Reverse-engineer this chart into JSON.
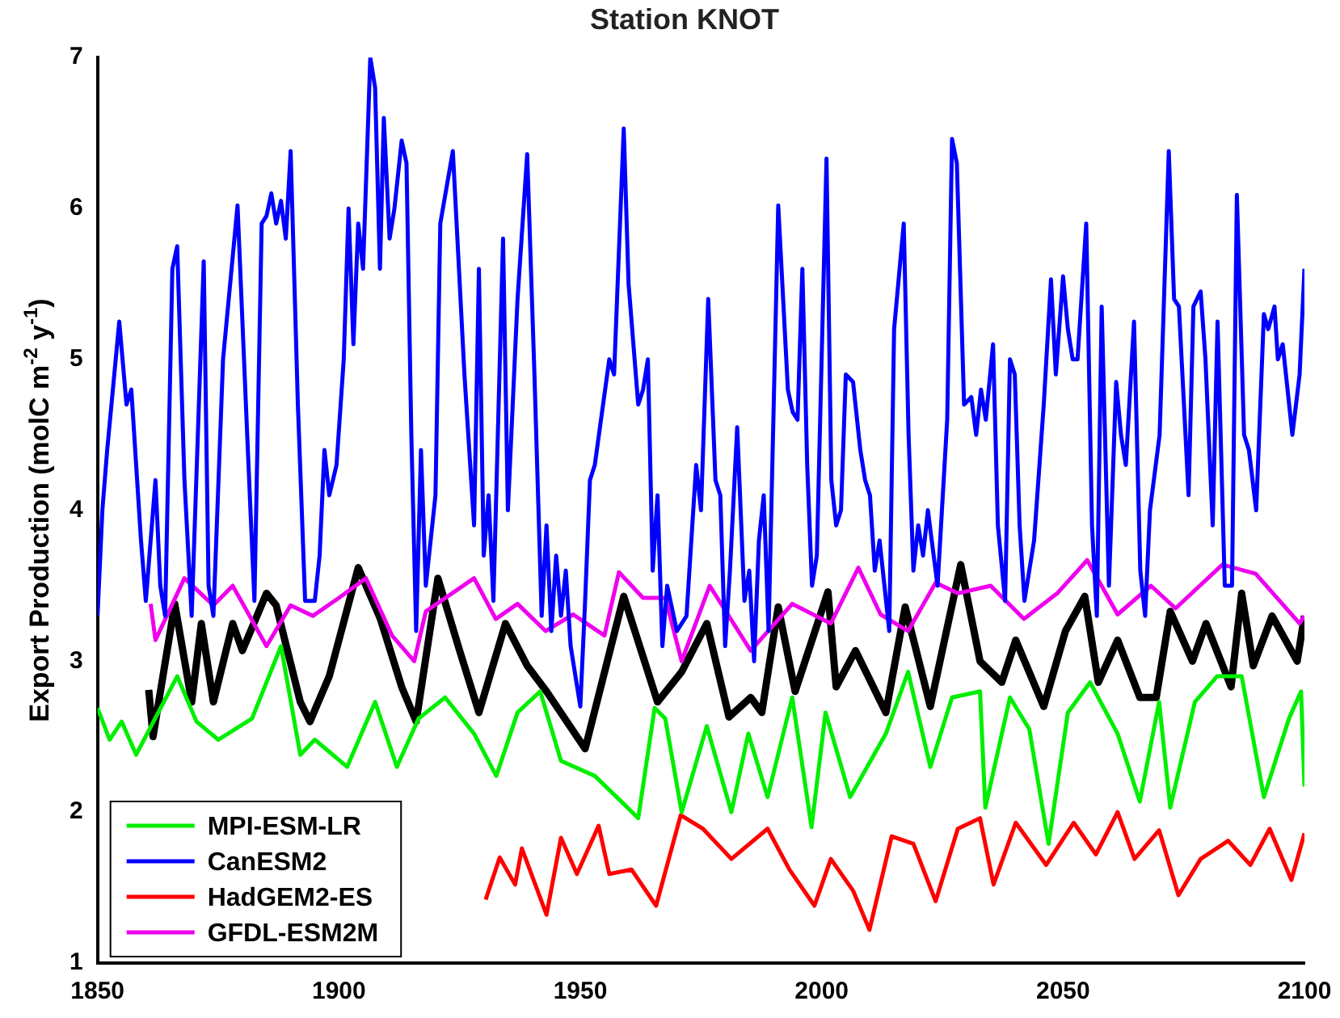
{
  "chart_data": {
    "type": "line",
    "title": "Station KNOT",
    "ylabel": "Export Production (molC m$^{-2}$ y$^{-1}$)",
    "xlim": [
      1850,
      2100
    ],
    "xticks": [
      1850,
      1900,
      1950,
      2000,
      2050,
      2100
    ],
    "ylim": [
      1,
      7
    ],
    "yticks": [
      1,
      2,
      3,
      4,
      5,
      6,
      7
    ],
    "grid": false,
    "legend": "bottom left",
    "marker": "none",
    "line_style": "solid",
    "series": [
      {
        "name": "MPI-ESM-LR",
        "color": "#00ee00",
        "x": [
          1850,
          1852.5,
          1855,
          1858,
          1866.5,
          1870.5,
          1875,
          1882,
          1888,
          1892,
          1895,
          1901.7,
          1907.5,
          1912,
          1916.5,
          1922,
          1928,
          1932.6,
          1937,
          1941.7,
          1946,
          1953,
          1958.5,
          1962,
          1965.4,
          1967.6,
          1971,
          1976.2,
          1981.3,
          1984.8,
          1988.8,
          1993.9,
          1997.9,
          2000.8,
          2005.9,
          2013.3,
          2017.9,
          2022.5,
          2027,
          2032.8,
          2033.9,
          2039,
          2043,
          2047,
          2051,
          2055.6,
          2061.3,
          2065.9,
          2069.9,
          2072.2,
          2077.3,
          2081.9,
          2087,
          2091.6,
          2096.8,
          2099.3,
          2100
        ],
        "values": [
          2.69,
          2.48,
          2.6,
          2.38,
          2.9,
          2.6,
          2.48,
          2.62,
          3.1,
          2.38,
          2.48,
          2.3,
          2.73,
          2.3,
          2.62,
          2.76,
          2.52,
          2.24,
          2.66,
          2.8,
          2.34,
          2.24,
          2.07,
          1.96,
          2.69,
          2.62,
          2.0,
          2.57,
          2.0,
          2.52,
          2.1,
          2.76,
          1.9,
          2.66,
          2.1,
          2.52,
          2.93,
          2.3,
          2.76,
          2.8,
          2.03,
          2.76,
          2.55,
          1.79,
          2.66,
          2.86,
          2.52,
          2.07,
          2.73,
          2.03,
          2.73,
          2.9,
          2.9,
          2.1,
          2.62,
          2.8,
          2.17
        ]
      },
      {
        "name": "CanESM2",
        "color": "#0000ff",
        "x": [
          1850,
          1851,
          1852,
          1854.5,
          1856,
          1857,
          1859,
          1860,
          1862,
          1863,
          1864,
          1865.5,
          1866.5,
          1868,
          1869.5,
          1872,
          1873,
          1874,
          1876,
          1879,
          1881,
          1882.5,
          1884,
          1885,
          1886,
          1887,
          1888,
          1889,
          1890,
          1891.5,
          1893,
          1895,
          1896,
          1897,
          1898,
          1899.5,
          1901,
          1902,
          1903,
          1904,
          1905,
          1906.5,
          1907.5,
          1908.5,
          1909.3,
          1910.5,
          1911.5,
          1913,
          1914,
          1915,
          1916,
          1917,
          1918,
          1920,
          1921,
          1923.6,
          1926,
          1928,
          1929,
          1930,
          1931,
          1932,
          1934,
          1935,
          1937,
          1939,
          1940.5,
          1942,
          1943,
          1944,
          1945,
          1946,
          1947,
          1948,
          1950,
          1951,
          1952,
          1953,
          1956,
          1957,
          1959,
          1960,
          1962,
          1963,
          1964,
          1965,
          1966,
          1967,
          1968,
          1970,
          1972,
          1974,
          1975,
          1976.5,
          1978,
          1979,
          1980,
          1981,
          1982.5,
          1984,
          1985,
          1986,
          1987,
          1988,
          1989,
          1991,
          1993,
          1994,
          1995,
          1996,
          1997,
          1998,
          1999,
          2001,
          2002,
          2003,
          2004,
          2005,
          2006.5,
          2008,
          2009,
          2010,
          2011,
          2012,
          2014,
          2015,
          2017,
          2018,
          2019,
          2020,
          2021,
          2022,
          2024,
          2026,
          2027,
          2028,
          2029.5,
          2031,
          2032,
          2033,
          2034,
          2035.5,
          2036.5,
          2038,
          2039,
          2040,
          2041,
          2042,
          2044,
          2046,
          2047.5,
          2048.5,
          2050,
          2051,
          2052,
          2053,
          2054.8,
          2056,
          2057,
          2058,
          2059.5,
          2061,
          2062,
          2063,
          2064.7,
          2066,
          2067,
          2068,
          2070,
          2071.9,
          2073,
          2074,
          2076,
          2077,
          2078.5,
          2079.5,
          2081,
          2082,
          2083.5,
          2085,
          2086,
          2087.5,
          2088.5,
          2090,
          2091.6,
          2092.5,
          2093.8,
          2094.5,
          2095.5,
          2097.5,
          2099,
          2100
        ],
        "values": [
          3.3,
          4.0,
          4.4,
          5.25,
          4.7,
          4.8,
          3.8,
          3.4,
          4.2,
          3.5,
          3.3,
          5.6,
          5.75,
          4.2,
          3.3,
          5.65,
          3.5,
          3.3,
          5.0,
          6.02,
          4.5,
          3.4,
          5.9,
          5.95,
          6.1,
          5.9,
          6.05,
          5.8,
          6.38,
          4.7,
          3.4,
          3.4,
          3.7,
          4.4,
          4.1,
          4.3,
          5.0,
          6.0,
          5.1,
          5.9,
          5.6,
          7.0,
          6.8,
          5.6,
          6.6,
          5.8,
          6.0,
          6.45,
          6.3,
          4.5,
          3.2,
          4.4,
          3.5,
          4.1,
          5.9,
          6.38,
          4.9,
          3.9,
          5.6,
          3.7,
          4.1,
          3.4,
          5.8,
          4.0,
          5.4,
          6.36,
          4.9,
          3.3,
          3.9,
          3.2,
          3.7,
          3.3,
          3.6,
          3.1,
          2.7,
          3.4,
          4.2,
          4.3,
          5.0,
          4.9,
          6.53,
          5.5,
          4.7,
          4.8,
          5.0,
          3.6,
          4.1,
          3.1,
          3.5,
          3.2,
          3.3,
          4.3,
          4.0,
          5.4,
          4.2,
          4.1,
          3.1,
          3.6,
          4.55,
          3.4,
          3.6,
          3.0,
          3.8,
          4.1,
          3.2,
          6.02,
          4.8,
          4.65,
          4.6,
          5.6,
          4.3,
          3.5,
          3.7,
          6.33,
          4.2,
          3.9,
          4.0,
          4.9,
          4.85,
          4.4,
          4.2,
          4.1,
          3.6,
          3.8,
          3.2,
          5.2,
          5.9,
          4.5,
          3.6,
          3.9,
          3.7,
          4.0,
          3.5,
          4.6,
          6.46,
          6.3,
          4.7,
          4.75,
          4.5,
          4.8,
          4.6,
          5.1,
          3.9,
          3.4,
          5.0,
          4.9,
          3.9,
          3.4,
          3.8,
          4.7,
          5.53,
          4.9,
          5.55,
          5.2,
          5.0,
          5.0,
          5.9,
          3.9,
          3.3,
          5.35,
          3.5,
          4.85,
          4.5,
          4.3,
          5.25,
          3.6,
          3.3,
          4.0,
          4.5,
          6.38,
          5.4,
          5.35,
          4.1,
          5.35,
          5.45,
          5.0,
          3.9,
          5.25,
          3.5,
          3.5,
          6.09,
          4.5,
          4.4,
          4.0,
          5.3,
          5.2,
          5.35,
          5.0,
          5.1,
          4.5,
          4.9,
          5.6
        ]
      },
      {
        "name": "HadGEM2-ES",
        "color": "#ff0000",
        "x": [
          1930.4,
          1933.3,
          1936.5,
          1937.9,
          1943,
          1946,
          1949.3,
          1953.8,
          1956,
          1960.6,
          1965.7,
          1970.8,
          1975.4,
          1981.3,
          1988.8,
          1993.3,
          1998.5,
          2001.9,
          2006.5,
          2009.9,
          2014.5,
          2019,
          2023.6,
          2028.2,
          2032.8,
          2035.6,
          2040.2,
          2046.5,
          2052.2,
          2056.8,
          2061.3,
          2064.8,
          2069.9,
          2073.9,
          2078.5,
          2084.2,
          2088.8,
          2092.8,
          2097.3,
          2100
        ],
        "values": [
          1.42,
          1.7,
          1.52,
          1.76,
          1.32,
          1.83,
          1.59,
          1.91,
          1.59,
          1.62,
          1.38,
          1.98,
          1.89,
          1.69,
          1.89,
          1.62,
          1.38,
          1.69,
          1.48,
          1.22,
          1.84,
          1.79,
          1.41,
          1.89,
          1.96,
          1.52,
          1.93,
          1.65,
          1.93,
          1.72,
          2.0,
          1.69,
          1.88,
          1.45,
          1.69,
          1.81,
          1.65,
          1.89,
          1.55,
          1.86
        ]
      },
      {
        "name": "GFDL-ESM2M",
        "color": "#ee00ee",
        "x": [
          1861,
          1862,
          1868,
          1874,
          1878,
          1885,
          1890,
          1894.6,
          1900,
          1905.6,
          1911,
          1915.6,
          1918,
          1928,
          1932.5,
          1937,
          1942.8,
          1948.5,
          1955,
          1958,
          1963,
          1967.6,
          1971,
          1976.8,
          1985.3,
          1993.9,
          2001.9,
          2007.6,
          2012.2,
          2017.9,
          2023.6,
          2028.2,
          2035,
          2041.9,
          2048.8,
          2055,
          2061.3,
          2068.2,
          2073.3,
          2083,
          2089.9,
          2099,
          2100
        ],
        "values": [
          3.38,
          3.14,
          3.55,
          3.37,
          3.5,
          3.1,
          3.37,
          3.3,
          3.42,
          3.55,
          3.17,
          3.0,
          3.33,
          3.55,
          3.28,
          3.38,
          3.2,
          3.31,
          3.17,
          3.59,
          3.42,
          3.42,
          3.0,
          3.5,
          3.07,
          3.38,
          3.25,
          3.62,
          3.31,
          3.2,
          3.52,
          3.45,
          3.5,
          3.28,
          3.45,
          3.67,
          3.31,
          3.5,
          3.35,
          3.64,
          3.58,
          3.25,
          3.3
        ]
      },
      {
        "color": "#000000",
        "x": [
          1860.6,
          1861.5,
          1866,
          1869.5,
          1871.5,
          1874,
          1878,
          1880,
          1885,
          1887,
          1892,
          1894,
          1898,
          1904,
          1908.6,
          1913,
          1916,
          1920.5,
          1925,
          1929,
          1934.5,
          1939,
          1943,
          1951,
          1959,
          1966,
          1971,
          1976.2,
          1980.8,
          1985.3,
          1987.6,
          1991,
          1994.5,
          2001.3,
          2003,
          2007,
          2013.3,
          2017.3,
          2022.5,
          2028.8,
          2032.8,
          2037.3,
          2040.2,
          2046,
          2050.5,
          2054.5,
          2057.3,
          2061.3,
          2065.9,
          2069.3,
          2072.2,
          2076.8,
          2079.6,
          2084.8,
          2087,
          2089.4,
          2093.3,
          2098.5,
          2100
        ],
        "values": [
          2.81,
          2.5,
          3.38,
          2.73,
          3.25,
          2.73,
          3.25,
          3.07,
          3.45,
          3.37,
          2.73,
          2.6,
          2.9,
          3.62,
          3.28,
          2.83,
          2.6,
          3.55,
          3.07,
          2.66,
          3.25,
          2.97,
          2.8,
          2.42,
          3.43,
          2.73,
          2.93,
          3.25,
          2.63,
          2.76,
          2.66,
          3.36,
          2.8,
          3.46,
          2.83,
          3.07,
          2.66,
          3.36,
          2.7,
          3.64,
          3.0,
          2.86,
          3.14,
          2.7,
          3.2,
          3.43,
          2.86,
          3.14,
          2.76,
          2.76,
          3.33,
          3.0,
          3.25,
          2.83,
          3.45,
          2.97,
          3.3,
          3.0,
          3.3
        ]
      }
    ]
  }
}
